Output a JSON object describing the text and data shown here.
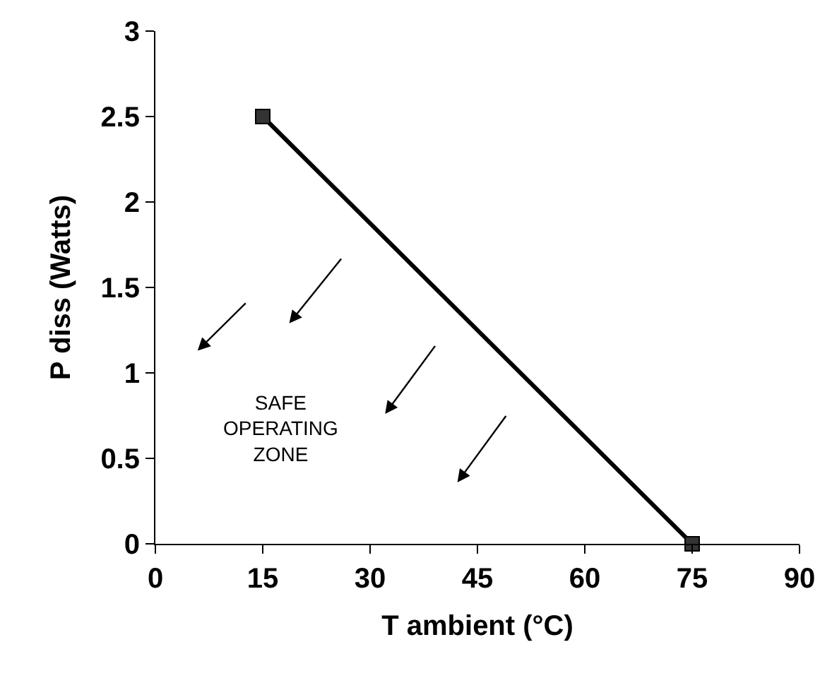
{
  "chart_data": {
    "type": "line",
    "xlabel": "T ambient (°C)",
    "ylabel": "P diss (Watts)",
    "x": [
      15,
      75
    ],
    "series": [
      {
        "color": "#000000",
        "values": [
          2.5,
          0
        ]
      }
    ],
    "marker": "square",
    "line_style": "solid",
    "legend": false,
    "xlim": [
      0,
      90
    ],
    "xticks": [
      0,
      15,
      30,
      45,
      60,
      75,
      90
    ],
    "ylim": [
      0,
      3
    ],
    "yticks": [
      0,
      0.5,
      1,
      1.5,
      2,
      2.5,
      3
    ],
    "annotations": [
      "SAFE\nOPERATING\nZONE"
    ]
  }
}
